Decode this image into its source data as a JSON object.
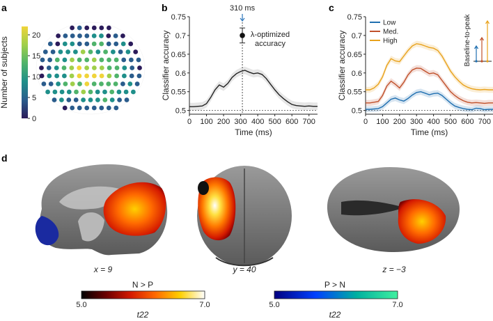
{
  "figure": {
    "panel_labels": [
      "a",
      "b",
      "c",
      "d"
    ]
  },
  "panel_a": {
    "colorbar_label": "Number of subjects",
    "colorbar_ticks": [
      "0",
      "5",
      "10",
      "15",
      "20"
    ],
    "colormap": [
      "#2b1b5a",
      "#2a5c8c",
      "#1f8f8a",
      "#4fb36b",
      "#9fcf4a",
      "#f0d43a"
    ]
  },
  "panel_b": {
    "annotation_time": "310 ms",
    "annotation_point": "λ-optimized accuracy",
    "annotation_line1": "λ-optimized",
    "annotation_line2": "accuracy"
  },
  "panel_c": {
    "inset_label": "Baseline-to-peak"
  },
  "panel_d": {
    "coords": [
      "x = 9",
      "y = 40",
      "z = −3"
    ],
    "cb_np_title": "N > P",
    "cb_pn_title": "P > N",
    "cb_min": "5.0",
    "cb_max": "7.0",
    "cb_unit": "t22",
    "np_colors": [
      "#000000",
      "#6b0000",
      "#d41a00",
      "#ff6a00",
      "#ffd000",
      "#ffffff"
    ],
    "pn_colors": [
      "#000080",
      "#0040ff",
      "#00b0a0",
      "#40f0a0"
    ]
  },
  "chart_data": [
    {
      "type": "line",
      "panel": "b",
      "xlabel": "Time (ms)",
      "ylabel": "Classifier accuracy",
      "xlim": [
        0,
        750
      ],
      "ylim": [
        0.49,
        0.75
      ],
      "xticks": [
        0,
        100,
        200,
        300,
        400,
        500,
        600,
        700
      ],
      "yticks": [
        0.5,
        0.55,
        0.6,
        0.65,
        0.7,
        0.75
      ],
      "chance": 0.5,
      "vline_x": 310,
      "series": [
        {
          "x": [
            0,
            25,
            50,
            75,
            100,
            125,
            150,
            175,
            200,
            225,
            250,
            275,
            300,
            325,
            350,
            375,
            400,
            425,
            450,
            475,
            500,
            525,
            550,
            575,
            600,
            625,
            650,
            675,
            700,
            725,
            750
          ],
          "values": [
            0.51,
            0.51,
            0.511,
            0.512,
            0.518,
            0.535,
            0.555,
            0.568,
            0.562,
            0.572,
            0.588,
            0.598,
            0.604,
            0.607,
            0.602,
            0.598,
            0.6,
            0.596,
            0.585,
            0.57,
            0.555,
            0.542,
            0.532,
            0.523,
            0.516,
            0.513,
            0.512,
            0.511,
            0.512,
            0.511,
            0.511
          ],
          "err": 0.01,
          "color": "#222222"
        }
      ],
      "point": {
        "x": 310,
        "y": 0.7,
        "err": 0.02
      }
    },
    {
      "type": "line",
      "panel": "c",
      "xlabel": "Time (ms)",
      "ylabel": "Classifier accuracy",
      "xlim": [
        0,
        750
      ],
      "ylim": [
        0.49,
        0.75
      ],
      "xticks": [
        0,
        100,
        200,
        300,
        400,
        500,
        600,
        700
      ],
      "yticks": [
        0.5,
        0.55,
        0.6,
        0.65,
        0.7,
        0.75
      ],
      "chance": 0.5,
      "legend": "top-left",
      "x": [
        0,
        25,
        50,
        75,
        100,
        125,
        150,
        175,
        200,
        225,
        250,
        275,
        300,
        325,
        350,
        375,
        400,
        425,
        450,
        475,
        500,
        525,
        550,
        575,
        600,
        625,
        650,
        675,
        700,
        725,
        750
      ],
      "series": [
        {
          "name": "Low",
          "color": "#1f6fb0",
          "values": [
            0.503,
            0.503,
            0.504,
            0.505,
            0.51,
            0.52,
            0.53,
            0.533,
            0.528,
            0.525,
            0.532,
            0.541,
            0.548,
            0.55,
            0.546,
            0.542,
            0.545,
            0.546,
            0.54,
            0.53,
            0.52,
            0.512,
            0.508,
            0.505,
            0.503,
            0.502,
            0.506,
            0.505,
            0.502,
            0.503,
            0.503
          ]
        },
        {
          "name": "Med.",
          "color": "#c0502a",
          "values": [
            0.52,
            0.52,
            0.522,
            0.524,
            0.54,
            0.565,
            0.578,
            0.57,
            0.56,
            0.575,
            0.595,
            0.608,
            0.613,
            0.612,
            0.605,
            0.598,
            0.6,
            0.595,
            0.58,
            0.565,
            0.55,
            0.54,
            0.532,
            0.526,
            0.522,
            0.52,
            0.521,
            0.52,
            0.519,
            0.52,
            0.52
          ]
        },
        {
          "name": "High",
          "color": "#e8a21c",
          "values": [
            0.555,
            0.555,
            0.56,
            0.57,
            0.59,
            0.62,
            0.638,
            0.632,
            0.63,
            0.645,
            0.66,
            0.672,
            0.678,
            0.676,
            0.672,
            0.668,
            0.666,
            0.66,
            0.645,
            0.625,
            0.605,
            0.59,
            0.578,
            0.568,
            0.562,
            0.558,
            0.556,
            0.555,
            0.556,
            0.555,
            0.555
          ]
        }
      ]
    }
  ]
}
